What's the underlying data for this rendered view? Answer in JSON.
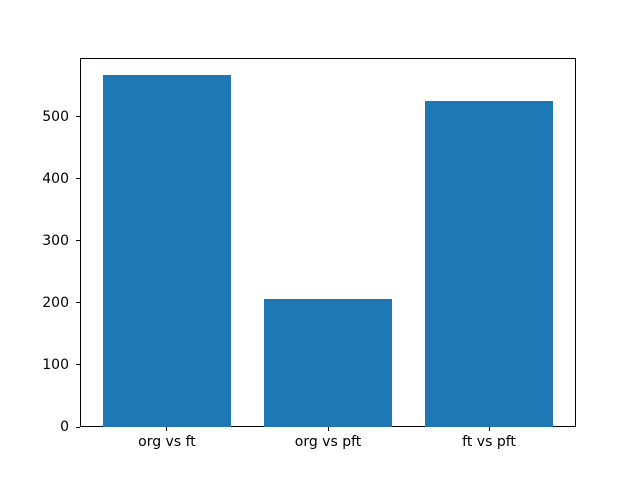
{
  "figure": {
    "background": "#ffffff",
    "axis_color": "#000000",
    "tick_label_color": "#000000"
  },
  "chart_data": {
    "type": "bar",
    "categories": [
      "org vs ft",
      "org vs pft",
      "ft vs pft"
    ],
    "values": [
      567,
      206,
      525
    ],
    "title": "",
    "xlabel": "",
    "ylabel": "",
    "yticks": [
      0,
      100,
      200,
      300,
      400,
      500
    ],
    "ylim": [
      0,
      595
    ],
    "xlim_units": [
      -0.54,
      2.54
    ],
    "bar_width_units": 0.8,
    "bar_color": "#1f77b4",
    "grid": false,
    "legend": false
  }
}
